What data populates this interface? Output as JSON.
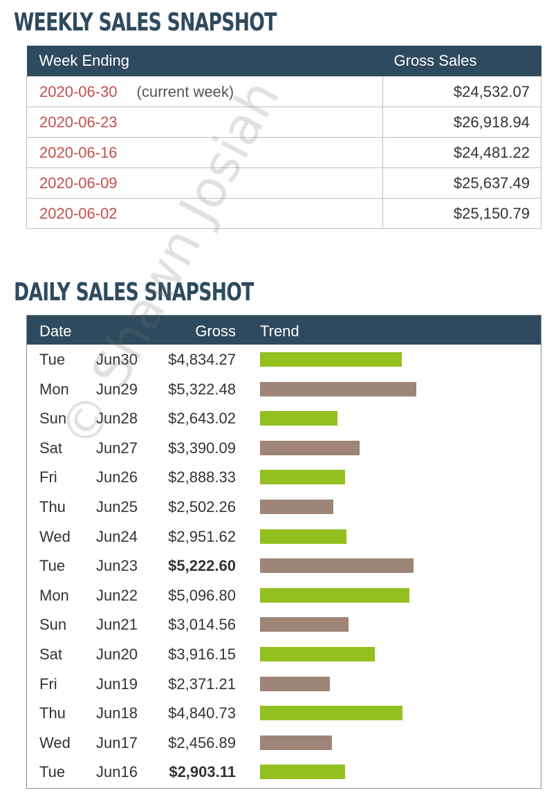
{
  "weekly": {
    "title": "WEEKLY SALES SNAPSHOT",
    "col_week": "Week Ending",
    "col_gross": "Gross Sales",
    "rows": [
      {
        "date": "2020-06-30",
        "note": "(current week)",
        "gross": "$24,532.07"
      },
      {
        "date": "2020-06-23",
        "note": "",
        "gross": "$26,918.94"
      },
      {
        "date": "2020-06-16",
        "note": "",
        "gross": "$24,481.22"
      },
      {
        "date": "2020-06-09",
        "note": "",
        "gross": "$25,637.49"
      },
      {
        "date": "2020-06-02",
        "note": "",
        "gross": "$25,150.79"
      }
    ]
  },
  "daily": {
    "title": "DAILY SALES SNAPSHOT",
    "col_date": "Date",
    "col_gross": "Gross",
    "col_trend": "Trend",
    "colors": {
      "green": "#93c01f",
      "brown": "#9e8578"
    },
    "rows": [
      {
        "dow": "Tue",
        "md": "Jun30",
        "gross": "$4,834.27",
        "value": 4834.27,
        "bold": false,
        "color": "green"
      },
      {
        "dow": "Mon",
        "md": "Jun29",
        "gross": "$5,322.48",
        "value": 5322.48,
        "bold": false,
        "color": "brown"
      },
      {
        "dow": "Sun",
        "md": "Jun28",
        "gross": "$2,643.02",
        "value": 2643.02,
        "bold": false,
        "color": "green"
      },
      {
        "dow": "Sat",
        "md": "Jun27",
        "gross": "$3,390.09",
        "value": 3390.09,
        "bold": false,
        "color": "brown"
      },
      {
        "dow": "Fri",
        "md": "Jun26",
        "gross": "$2,888.33",
        "value": 2888.33,
        "bold": false,
        "color": "green"
      },
      {
        "dow": "Thu",
        "md": "Jun25",
        "gross": "$2,502.26",
        "value": 2502.26,
        "bold": false,
        "color": "brown"
      },
      {
        "dow": "Wed",
        "md": "Jun24",
        "gross": "$2,951.62",
        "value": 2951.62,
        "bold": false,
        "color": "green"
      },
      {
        "dow": "Tue",
        "md": "Jun23",
        "gross": "$5,222.60",
        "value": 5222.6,
        "bold": true,
        "color": "brown"
      },
      {
        "dow": "Mon",
        "md": "Jun22",
        "gross": "$5,096.80",
        "value": 5096.8,
        "bold": false,
        "color": "green"
      },
      {
        "dow": "Sun",
        "md": "Jun21",
        "gross": "$3,014.56",
        "value": 3014.56,
        "bold": false,
        "color": "brown"
      },
      {
        "dow": "Sat",
        "md": "Jun20",
        "gross": "$3,916.15",
        "value": 3916.15,
        "bold": false,
        "color": "green"
      },
      {
        "dow": "Fri",
        "md": "Jun19",
        "gross": "$2,371.21",
        "value": 2371.21,
        "bold": false,
        "color": "brown"
      },
      {
        "dow": "Thu",
        "md": "Jun18",
        "gross": "$4,840.73",
        "value": 4840.73,
        "bold": false,
        "color": "green"
      },
      {
        "dow": "Wed",
        "md": "Jun17",
        "gross": "$2,456.89",
        "value": 2456.89,
        "bold": false,
        "color": "brown"
      },
      {
        "dow": "Tue",
        "md": "Jun16",
        "gross": "$2,903.11",
        "value": 2903.11,
        "bold": true,
        "color": "green"
      }
    ]
  },
  "watermark": "© Shawn Josiah"
}
